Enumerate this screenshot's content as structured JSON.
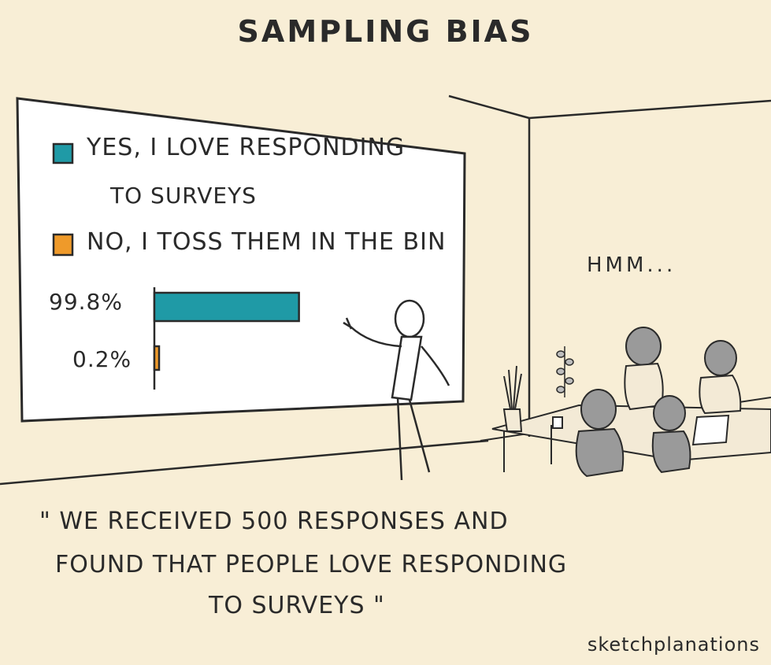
{
  "title": "SAMPLING BIAS",
  "chart_data": {
    "type": "bar",
    "orientation": "horizontal",
    "categories": [
      "YES, I LOVE RESPONDING TO SURVEYS",
      "NO, I TOSS THEM IN THE BIN"
    ],
    "values": [
      99.8,
      0.2
    ],
    "value_labels": [
      "99.8%",
      "0.2%"
    ],
    "colors": [
      "#1f9aa6",
      "#ef9a2a"
    ],
    "xlim": [
      0,
      100
    ]
  },
  "legend": {
    "yes_line1": "YES, I LOVE RESPONDING",
    "yes_line2": "TO SURVEYS",
    "no": "NO, I TOSS THEM IN THE BIN"
  },
  "speech": "HMM...",
  "quote": {
    "line1": "\" WE RECEIVED 500 RESPONSES AND",
    "line2": "FOUND THAT PEOPLE LOVE RESPONDING",
    "line3": "TO SURVEYS \""
  },
  "credit": "sketchplanations",
  "colors": {
    "background": "#f8eed6",
    "board": "#ffffff",
    "yes": "#1f9aa6",
    "no": "#ef9a2a",
    "ink": "#2a2a2a",
    "figure_grey": "#9a9a9a"
  }
}
